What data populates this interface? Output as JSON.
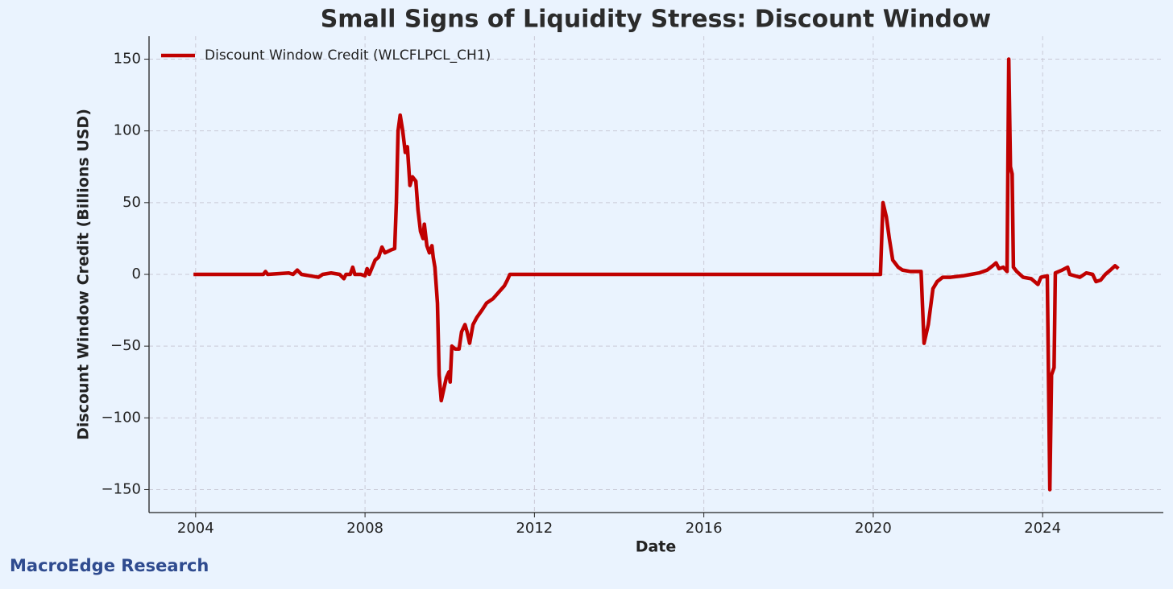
{
  "chart_data": {
    "type": "line",
    "title": "Small Signs of Liquidity Stress: Discount Window",
    "x_label": "Date",
    "y_label": "Discount Window Credit (Billions USD)",
    "watermark": "MacroEdge Research",
    "legend": "upper left",
    "grid": true,
    "xlim": [
      2002.9,
      2026.85
    ],
    "ylim": [
      -166,
      166
    ],
    "xticks": [
      2004,
      2008,
      2012,
      2016,
      2020,
      2024
    ],
    "yticks": [
      {
        "value": -150,
        "label": "−150"
      },
      {
        "value": -100,
        "label": "−100"
      },
      {
        "value": -50,
        "label": "−50"
      },
      0,
      50,
      100,
      150
    ],
    "x": [
      2003.95,
      2005.0,
      2005.6,
      2005.65,
      2005.7,
      2006.2,
      2006.3,
      2006.4,
      2006.5,
      2006.9,
      2007.0,
      2007.2,
      2007.4,
      2007.5,
      2007.55,
      2007.65,
      2007.71,
      2007.76,
      2007.9,
      2008.0,
      2008.05,
      2008.1,
      2008.24,
      2008.32,
      2008.4,
      2008.47,
      2008.61,
      2008.7,
      2008.74,
      2008.78,
      2008.83,
      2008.89,
      2008.95,
      2009.0,
      2009.06,
      2009.12,
      2009.2,
      2009.25,
      2009.31,
      2009.37,
      2009.4,
      2009.46,
      2009.52,
      2009.58,
      2009.61,
      2009.65,
      2009.71,
      2009.75,
      2009.8,
      2009.86,
      2009.92,
      2009.98,
      2010.01,
      2010.05,
      2010.13,
      2010.22,
      2010.28,
      2010.36,
      2010.41,
      2010.47,
      2010.55,
      2010.64,
      2010.76,
      2010.87,
      2011.02,
      2011.17,
      2011.29,
      2011.36,
      2011.42,
      2020.17,
      2020.23,
      2020.31,
      2020.38,
      2020.46,
      2020.59,
      2020.69,
      2020.88,
      2021.13,
      2021.2,
      2021.3,
      2021.41,
      2021.51,
      2021.64,
      2021.83,
      2022.12,
      2022.31,
      2022.5,
      2022.69,
      2022.82,
      2022.9,
      2022.97,
      2023.07,
      2023.16,
      2023.2,
      2023.24,
      2023.28,
      2023.31,
      2023.39,
      2023.54,
      2023.73,
      2023.89,
      2023.96,
      2024.11,
      2024.17,
      2024.21,
      2024.27,
      2024.3,
      2024.46,
      2024.59,
      2024.64,
      2024.88,
      2025.03,
      2025.18,
      2025.26,
      2025.37,
      2025.48,
      2025.6,
      2025.71,
      2025.79
    ],
    "series": [
      {
        "name": "Discount Window Credit (WLCFLPCL_CH1)",
        "color": "#c00000",
        "values": [
          0,
          0,
          0,
          2,
          0,
          1,
          0,
          3,
          0,
          -2,
          0,
          1,
          0,
          -3,
          0,
          0,
          5,
          0,
          0,
          -1,
          4,
          0,
          10,
          12,
          19,
          15,
          17,
          18,
          50,
          100,
          111,
          100,
          85,
          89,
          62,
          68,
          65,
          45,
          30,
          25,
          35,
          20,
          15,
          20,
          12,
          5,
          -20,
          -70,
          -88,
          -80,
          -72,
          -68,
          -75,
          -50,
          -52,
          -52,
          -40,
          -35,
          -40,
          -48,
          -35,
          -30,
          -25,
          -20,
          -17,
          -12,
          -8,
          -4,
          0,
          0,
          50,
          40,
          25,
          10,
          5,
          3,
          2,
          2,
          -48,
          -35,
          -10,
          -5,
          -2,
          -2,
          -1,
          0,
          1,
          3,
          6,
          8,
          4,
          5,
          2,
          150,
          75,
          70,
          5,
          2,
          -2,
          -3,
          -7,
          -2,
          -1,
          -150,
          -70,
          -65,
          1,
          3,
          5,
          0,
          -2,
          1,
          0,
          -5,
          -4,
          0,
          3,
          6,
          4
        ]
      }
    ]
  }
}
